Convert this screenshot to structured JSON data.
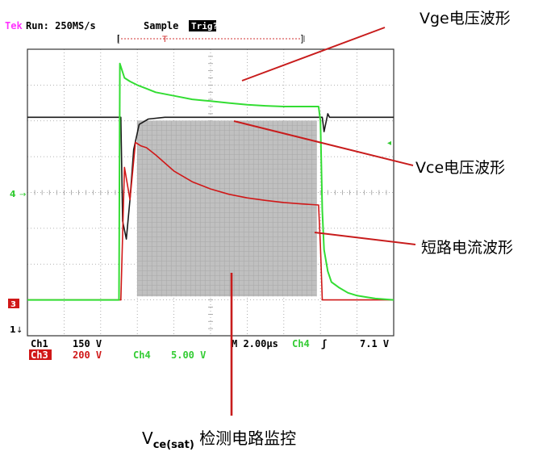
{
  "header": {
    "brand": "Tek",
    "run": "Run: 250MS/s",
    "mode": "Sample",
    "trig": "Trig?"
  },
  "markers": {
    "ch4": "4",
    "ch3": "3",
    "ch1": "1",
    "trigger_level": "T"
  },
  "footer": {
    "ch1_label": "Ch1",
    "ch1_scale": "150 V",
    "ch3_label": "Ch3",
    "ch3_scale": "200 V",
    "ch4_label": "Ch4",
    "ch4_scale": "5.00 V",
    "timebase": "M 2.00µs",
    "trig_source": "Ch4",
    "trig_slope": "ʃ",
    "trig_level": "7.1 V"
  },
  "annotations": {
    "vge": "Vge电压波形",
    "vce": "Vce电压波形",
    "isc": "短路电流波形",
    "vcesat_main": "V",
    "vcesat_sub": "ce(sat)",
    "vcesat_rest": " 检测电路监控"
  },
  "colors": {
    "ch1": "#1a1a1a",
    "ch3": "#d01818",
    "ch4": "#33dd33",
    "ch3_fill": "#c0c0c0",
    "grid": "#9a9a9a",
    "brand": "#ff33ff",
    "pointer": "#c81c1c"
  },
  "chart_data": {
    "type": "line",
    "x_unit": "µs",
    "xlim": [
      0,
      20
    ],
    "ylim": [
      -4,
      4
    ],
    "series": [
      {
        "name": "Ch1",
        "x": [
          0,
          5.1,
          5.2,
          5.4,
          5.6,
          5.8,
          6.1,
          6.6,
          7.5,
          16.1,
          16.2,
          16.4,
          16.5,
          20
        ],
        "y": [
          2.1,
          2.1,
          -0.8,
          -1.3,
          -0.2,
          1.2,
          1.9,
          2.05,
          2.1,
          2.1,
          1.7,
          2.2,
          2.1,
          2.1
        ]
      },
      {
        "name": "Ch3",
        "x": [
          0,
          5.1,
          5.3,
          5.6,
          5.9,
          6.2,
          6.5,
          7.0,
          8.0,
          9.0,
          10.0,
          11.0,
          12.0,
          13.0,
          14.0,
          15.0,
          15.9,
          16.0,
          16.1,
          20
        ],
        "y": [
          -3.0,
          -3.0,
          0.7,
          -0.2,
          1.4,
          1.3,
          1.25,
          1.05,
          0.6,
          0.3,
          0.1,
          -0.05,
          -0.15,
          -0.22,
          -0.28,
          -0.32,
          -0.35,
          -1.5,
          -3.0,
          -3.0
        ]
      },
      {
        "name": "Ch4",
        "x": [
          0,
          5.0,
          5.05,
          5.3,
          5.6,
          6.0,
          6.5,
          7.0,
          8.0,
          9.0,
          10.0,
          11.0,
          12.0,
          13.0,
          14.0,
          15.0,
          15.9,
          16.0,
          16.1,
          16.2,
          16.4,
          16.6,
          17.0,
          17.5,
          18.0,
          18.5,
          19.0,
          20
        ],
        "y": [
          -3.0,
          -3.0,
          3.6,
          3.2,
          3.1,
          3.0,
          2.9,
          2.8,
          2.7,
          2.6,
          2.55,
          2.5,
          2.45,
          2.42,
          2.4,
          2.4,
          2.4,
          2.0,
          -0.5,
          -1.6,
          -2.2,
          -2.5,
          -2.65,
          -2.8,
          -2.88,
          -2.92,
          -2.96,
          -3.0
        ]
      }
    ],
    "shaded_region": {
      "x": [
        6.0,
        15.8
      ],
      "y": [
        -2.9,
        2.0
      ]
    }
  }
}
